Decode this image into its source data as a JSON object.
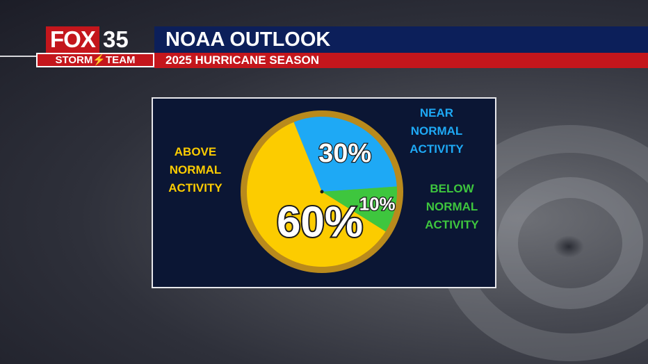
{
  "header": {
    "logo_top": "FOX",
    "logo_number": "35",
    "logo_bottom": "STORM⚡TEAM",
    "title": "NOAA OUTLOOK",
    "subtitle": "2025 HURRICANE SEASON"
  },
  "colors": {
    "navy": "#0c1f5a",
    "red": "#c4161c",
    "panel_bg": "#0b1634",
    "above": "#fccc00",
    "near": "#1ea9f5",
    "below": "#3ec63e",
    "rim": "#b98a1c"
  },
  "chart_data": {
    "type": "pie",
    "title": "",
    "slices": [
      {
        "label": "ABOVE NORMAL ACTIVITY",
        "display": "60%",
        "value": 60,
        "color": "#fccc00"
      },
      {
        "label": "NEAR NORMAL ACTIVITY",
        "display": "30%",
        "value": 30,
        "color": "#1ea9f5"
      },
      {
        "label": "BELOW NORMAL ACTIVITY",
        "display": "10%",
        "value": 10,
        "color": "#3ec63e"
      }
    ]
  },
  "labels": {
    "above": "ABOVE\nNORMAL\nACTIVITY",
    "near": "NEAR\nNORMAL\nACTIVITY",
    "below": "BELOW\nNORMAL\nACTIVITY"
  }
}
